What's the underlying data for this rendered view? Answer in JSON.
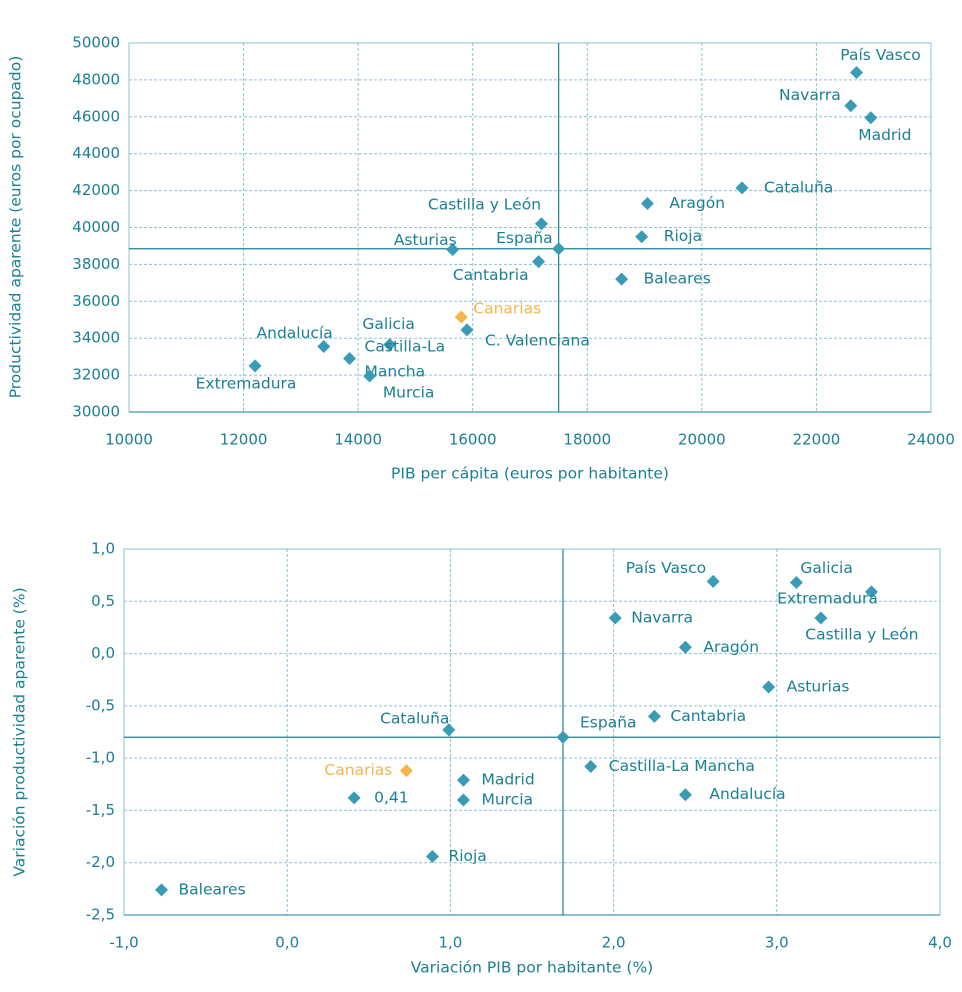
{
  "chart_data": [
    {
      "type": "scatter",
      "x_label": "PIB per cápita (euros por habitante)",
      "y_label": "Productividad aparente (euros por ocupado)",
      "categories": [
        "País Vasco",
        "Navarra",
        "Madrid",
        "Cataluña",
        "Aragón",
        "Castilla y León",
        "Rioja",
        "Asturias",
        "España",
        "Cantabria",
        "Baleares",
        "Canarias",
        "C. Valenciana",
        "Galicia",
        "Andalucía",
        "Castilla-La Mancha",
        "Murcia",
        "Extremadura"
      ],
      "x": [
        22700,
        22600,
        22950,
        20700,
        19050,
        17200,
        18950,
        15650,
        17500,
        17150,
        18600,
        15800,
        15900,
        14550,
        13400,
        13850,
        14200,
        12200
      ],
      "values": [
        48400,
        46600,
        45950,
        42150,
        41300,
        40200,
        39500,
        38800,
        38850,
        38150,
        37200,
        35150,
        34450,
        33650,
        33550,
        32900,
        31950,
        32500
      ],
      "color": "#3a9bb7",
      "highlight": {
        "name": "Canarias",
        "color": "#f6b54c"
      },
      "reference_lines": "España",
      "xlim": [
        10000,
        24000
      ],
      "xticks": [
        10000,
        12000,
        14000,
        16000,
        18000,
        20000,
        22000,
        24000
      ],
      "ylim": [
        30000,
        50000
      ],
      "yticks": [
        30000,
        32000,
        34000,
        36000,
        38000,
        40000,
        42000,
        44000,
        46000,
        48000,
        50000
      ],
      "grid": true
    },
    {
      "type": "scatter",
      "x_label": "Variación PIB por habitante (%)",
      "y_label": "Variación productividad aparente (%)",
      "categories": [
        "País Vasco",
        "Galicia",
        "Extremadura",
        "Castilla y León",
        "Navarra",
        "Aragón",
        "Asturias",
        "Cantabria",
        "Cataluña",
        "España",
        "Castilla-La Mancha",
        "Canarias",
        "Madrid",
        "0,41",
        "Murcia",
        "Andalucía",
        "Rioja",
        "Baleares"
      ],
      "x": [
        2.61,
        3.12,
        3.58,
        3.27,
        2.01,
        2.44,
        2.95,
        2.25,
        0.99,
        1.69,
        1.86,
        0.73,
        1.08,
        0.41,
        1.08,
        2.44,
        0.89,
        -0.77
      ],
      "values": [
        0.69,
        0.68,
        0.59,
        0.34,
        0.34,
        0.06,
        -0.32,
        -0.6,
        -0.73,
        -0.8,
        -1.08,
        -1.12,
        -1.21,
        -1.38,
        -1.4,
        -1.35,
        -1.94,
        -2.26
      ],
      "color": "#3a9bb7",
      "highlight": {
        "name": "Canarias",
        "color": "#f6b54c"
      },
      "reference_lines": "España",
      "xlim": [
        -1,
        4
      ],
      "xticks": [
        {
          "value": -1,
          "label": "-1,0"
        },
        {
          "value": 0,
          "label": "0,0"
        },
        {
          "value": 1,
          "label": "1,0"
        },
        {
          "value": 2,
          "label": "2,0"
        },
        {
          "value": 3,
          "label": "3,0"
        },
        {
          "value": 4,
          "label": "4,0"
        }
      ],
      "ylim": [
        -2.5,
        1
      ],
      "yticks": [
        {
          "value": -2.5,
          "label": "-2,5"
        },
        {
          "value": -2,
          "label": "-2,0"
        },
        {
          "value": -1.5,
          "label": "-1,5"
        },
        {
          "value": -1,
          "label": "-1,0"
        },
        {
          "value": -0.5,
          "label": "-0,5"
        },
        {
          "value": 0,
          "label": "0,0"
        },
        {
          "value": 0.5,
          "label": "0,5"
        },
        {
          "value": 1,
          "label": "1,0"
        }
      ],
      "grid": true
    }
  ]
}
